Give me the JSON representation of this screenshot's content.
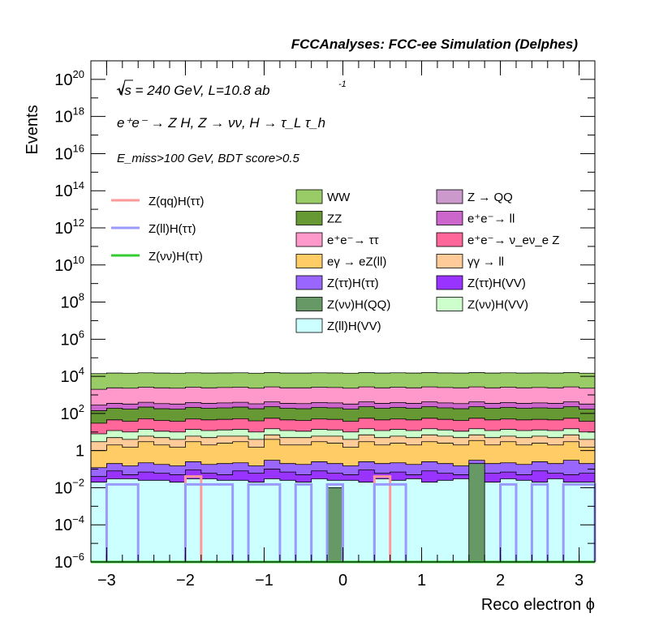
{
  "header": {
    "title": "FCCAnalyses: FCC-ee Simulation (Delphes)"
  },
  "annotations": {
    "energy": "√s = 240 GeV, L=10.8 ab",
    "lumi_exp": "-1",
    "process": "e⁺e⁻ → Z H, Z → νν, H → τ_L τ_h",
    "cut": "E_miss>100 GeV, BDT score>0.5"
  },
  "chart_data": {
    "type": "bar",
    "subtype": "stacked histogram with signal overlay lines",
    "xlabel": "Reco electron ϕ",
    "ylabel": "Events",
    "xlim": [
      -3.2,
      3.2
    ],
    "ylim": [
      1e-06,
      1e+21
    ],
    "yscale": "log",
    "grid": false,
    "legend_position": "top",
    "x_ticks": [
      {
        "value": -3,
        "label": "−3"
      },
      {
        "value": -2,
        "label": "−2"
      },
      {
        "value": -1,
        "label": "−1"
      },
      {
        "value": 0,
        "label": "0"
      },
      {
        "value": 1,
        "label": "1"
      },
      {
        "value": 2,
        "label": "2"
      },
      {
        "value": 3,
        "label": "3"
      }
    ],
    "y_ticks": [
      {
        "value": 1e-06,
        "base": "10",
        "exp": "−6"
      },
      {
        "value": 0.0001,
        "base": "10",
        "exp": "−4"
      },
      {
        "value": 0.01,
        "base": "10",
        "exp": "−2"
      },
      {
        "value": 1,
        "base": "1",
        "exp": ""
      },
      {
        "value": 100.0,
        "base": "10",
        "exp": "2"
      },
      {
        "value": 10000.0,
        "base": "10",
        "exp": "4"
      },
      {
        "value": 1000000.0,
        "base": "10",
        "exp": "6"
      },
      {
        "value": 100000000.0,
        "base": "10",
        "exp": "8"
      },
      {
        "value": 10000000000.0,
        "base": "10",
        "exp": "10"
      },
      {
        "value": 1000000000000.0,
        "base": "10",
        "exp": "12"
      },
      {
        "value": 100000000000000.0,
        "base": "10",
        "exp": "14"
      },
      {
        "value": 1e+16,
        "base": "10",
        "exp": "16"
      },
      {
        "value": 1e+18,
        "base": "10",
        "exp": "18"
      },
      {
        "value": 1e+20,
        "base": "10",
        "exp": "20"
      }
    ],
    "bins": [
      -3.2,
      -3.0,
      -2.8,
      -2.6,
      -2.4,
      -2.2,
      -2.0,
      -1.8,
      -1.6,
      -1.4,
      -1.2,
      -1.0,
      -0.8,
      -0.6,
      -0.4,
      -0.2,
      0.0,
      0.2,
      0.4,
      0.6,
      0.8,
      1.0,
      1.2,
      1.4,
      1.6,
      1.8,
      2.0,
      2.2,
      2.4,
      2.6,
      2.8,
      3.0,
      3.2
    ],
    "stack_bands": [
      {
        "name": "Z(ll)H(VV)",
        "color": "#ccffff",
        "upper": [
          0.02,
          0.03,
          0.03,
          0.025,
          0.025,
          0.02,
          0.03,
          0.03,
          0.025,
          0.025,
          0.02,
          0.03,
          0.025,
          0.02,
          0.03,
          0.025,
          0.025,
          0.02,
          0.03,
          0.025,
          0.03,
          0.02,
          0.025,
          0.03,
          0.025,
          0.02,
          0.03,
          0.025,
          0.02,
          0.03,
          0.02,
          0.02
        ]
      },
      {
        "name": "Z(ττ)H(VV)",
        "color": "#9933ff",
        "upper": [
          0.04,
          0.08,
          0.05,
          0.07,
          0.06,
          0.05,
          0.09,
          0.06,
          0.05,
          0.08,
          0.06,
          0.1,
          0.07,
          0.05,
          0.08,
          0.06,
          0.05,
          0.09,
          0.06,
          0.07,
          0.05,
          0.08,
          0.06,
          0.05,
          0.09,
          0.06,
          0.07,
          0.05,
          0.08,
          0.06,
          0.05,
          0.06
        ]
      },
      {
        "name": "Z(ττ)H(ττ)",
        "color": "#9966ff",
        "upper": [
          0.12,
          0.2,
          0.15,
          0.22,
          0.18,
          0.15,
          0.25,
          0.18,
          0.2,
          0.22,
          0.15,
          0.3,
          0.2,
          0.18,
          0.25,
          0.2,
          0.15,
          0.25,
          0.2,
          0.22,
          0.18,
          0.25,
          0.2,
          0.15,
          0.3,
          0.2,
          0.22,
          0.18,
          0.25,
          0.2,
          0.3,
          0.2
        ]
      },
      {
        "name": "eγ → eZ(ll)",
        "color": "#ffcc66",
        "upper": [
          1,
          2,
          1.5,
          3,
          2,
          1.5,
          3,
          2,
          2.5,
          3,
          1.5,
          4,
          2,
          2,
          3,
          2.5,
          1.5,
          3,
          2,
          2.5,
          2,
          3,
          2.5,
          2,
          3.5,
          2,
          3,
          2,
          2.5,
          2,
          3,
          1.5
        ]
      },
      {
        "name": "γγ → ll",
        "color": "#ffcc99",
        "upper": [
          3,
          5,
          4,
          6,
          5,
          4,
          6,
          5,
          6,
          6,
          4,
          7,
          5,
          5,
          6,
          6,
          4,
          7,
          5,
          6,
          5,
          7,
          6,
          5,
          7,
          5,
          6,
          5,
          6,
          5,
          7,
          4
        ]
      },
      {
        "name": "Z(νν)H(VV)",
        "color": "#ccffcc",
        "upper": [
          8,
          12,
          10,
          14,
          11,
          10,
          14,
          12,
          13,
          14,
          10,
          15,
          12,
          11,
          14,
          13,
          10,
          15,
          12,
          14,
          12,
          15,
          13,
          11,
          15,
          12,
          14,
          12,
          13,
          12,
          15,
          10
        ]
      },
      {
        "name": "e⁺e⁻→ ν_eν_e Z",
        "color": "#ff6699",
        "upper": [
          30,
          45,
          38,
          52,
          42,
          38,
          50,
          45,
          48,
          52,
          40,
          55,
          45,
          42,
          50,
          48,
          38,
          55,
          45,
          50,
          45,
          55,
          48,
          42,
          55,
          45,
          50,
          45,
          48,
          45,
          55,
          38
        ]
      },
      {
        "name": "ZZ",
        "color": "#669933",
        "upper": [
          140,
          190,
          170,
          220,
          180,
          170,
          210,
          190,
          200,
          220,
          180,
          230,
          190,
          180,
          210,
          200,
          170,
          230,
          190,
          210,
          190,
          230,
          200,
          180,
          230,
          190,
          210,
          190,
          200,
          190,
          230,
          170
        ]
      },
      {
        "name": "e⁺e⁻→ ll",
        "color": "#cc66cc",
        "upper": [
          280,
          350,
          320,
          400,
          340,
          320,
          390,
          350,
          370,
          400,
          330,
          420,
          350,
          340,
          390,
          370,
          320,
          420,
          350,
          390,
          350,
          420,
          370,
          340,
          420,
          350,
          390,
          350,
          370,
          350,
          420,
          320
        ]
      },
      {
        "name": "e⁺e⁻→ ττ",
        "color": "#ff99cc",
        "upper": [
          2000,
          2400,
          2300,
          2600,
          2400,
          2300,
          2600,
          2400,
          2500,
          2600,
          2300,
          2700,
          2400,
          2400,
          2600,
          2500,
          2300,
          2700,
          2400,
          2600,
          2400,
          2700,
          2500,
          2400,
          2700,
          2400,
          2600,
          2400,
          2500,
          2400,
          2700,
          2300
        ]
      },
      {
        "name": "WW",
        "color": "#99cc66",
        "upper": [
          14000,
          15000,
          14800,
          15500,
          15000,
          14800,
          15500,
          15000,
          15200,
          15500,
          14800,
          15800,
          15000,
          15000,
          15500,
          15200,
          14800,
          15800,
          15000,
          15500,
          15000,
          15800,
          15200,
          15000,
          15800,
          15000,
          15500,
          15000,
          15200,
          15000,
          15800,
          14800
        ]
      }
    ],
    "spikes": [
      {
        "name": "Z(νν)H(QQ)",
        "color": "#669966",
        "x0": -0.2,
        "x1": 0.0,
        "value": 0.01
      },
      {
        "name": "Z(νν)H(QQ)",
        "color": "#669966",
        "x0": 1.6,
        "x1": 1.8,
        "value": 0.2
      }
    ],
    "signal_lines": [
      {
        "name": "Z(qq)H(ττ)",
        "color": "#ff9999",
        "values": [
          0,
          0,
          0,
          0,
          0,
          0,
          0.04,
          0,
          0,
          0,
          0,
          0,
          0,
          0,
          0,
          0,
          0,
          0,
          0.04,
          0,
          0,
          0,
          0,
          0,
          0,
          0,
          0,
          0,
          0,
          0,
          0,
          0
        ]
      },
      {
        "name": "Z(ll)H(ττ)",
        "color": "#9999ff",
        "values": [
          0,
          0.015,
          0.015,
          0,
          0,
          0,
          0.015,
          0.015,
          0.015,
          0,
          0.015,
          0.015,
          0,
          0.015,
          0,
          0.015,
          0,
          0,
          0.015,
          0.015,
          0,
          0,
          0,
          0,
          0,
          0,
          0.015,
          0,
          0.015,
          0,
          0.015,
          0.015
        ]
      },
      {
        "name": "Z(νν)H(ττ)",
        "color": "#33cc33",
        "values": [
          0,
          0,
          0,
          0,
          0,
          0,
          0,
          0,
          0,
          0,
          0,
          0,
          0,
          0,
          0,
          0,
          0,
          0,
          0,
          0,
          0,
          0,
          0,
          0,
          0,
          0,
          0,
          0,
          0,
          0,
          0,
          0
        ]
      }
    ],
    "legend_lines": [
      {
        "label": "Z(qq)H(ττ)",
        "color": "#ff9999"
      },
      {
        "label": "Z(ll)H(ττ)",
        "color": "#9999ff"
      },
      {
        "label": "Z(νν)H(ττ)",
        "color": "#33cc33"
      }
    ],
    "legend_boxes": [
      {
        "label": "WW",
        "color": "#99cc66"
      },
      {
        "label": "Z → QQ",
        "color": "#cc99cc"
      },
      {
        "label": "ZZ",
        "color": "#669933"
      },
      {
        "label": "e⁺e⁻→ ll",
        "color": "#cc66cc"
      },
      {
        "label": "e⁺e⁻→ ττ",
        "color": "#ff99cc"
      },
      {
        "label": "e⁺e⁻→ ν_eν_e Z",
        "color": "#ff6699"
      },
      {
        "label": "eγ → eZ(ll)",
        "color": "#ffcc66"
      },
      {
        "label": "γγ → ll",
        "color": "#ffcc99"
      },
      {
        "label": "Z(ττ)H(ττ)",
        "color": "#9966ff"
      },
      {
        "label": "Z(ττ)H(VV)",
        "color": "#9933ff"
      },
      {
        "label": "Z(νν)H(QQ)",
        "color": "#669966"
      },
      {
        "label": "Z(νν)H(VV)",
        "color": "#ccffcc"
      },
      {
        "label": "Z(ll)H(VV)",
        "color": "#ccffff"
      }
    ]
  }
}
